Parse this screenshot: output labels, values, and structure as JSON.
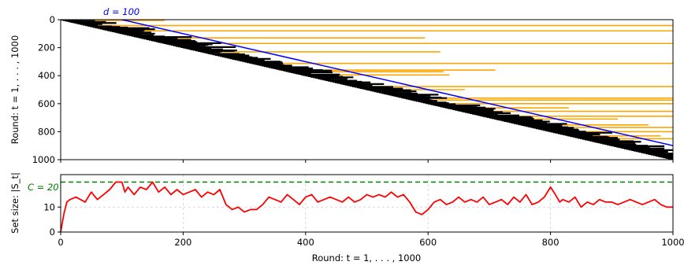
{
  "chart_data": [
    {
      "type": "interval",
      "ylabel": "Round: t = 1, . . . , 1000",
      "xlim": [
        0,
        1000
      ],
      "ylim": [
        0,
        1000
      ],
      "y_inverted": true,
      "xticks": [
        "0",
        "200",
        "400",
        "600",
        "800",
        "1000"
      ],
      "yticks": [
        "0",
        "200",
        "400",
        "600",
        "800",
        "1000"
      ],
      "annotation": "d = 100",
      "colors": {
        "line": "#0000ff",
        "short": "#000000",
        "long": "#ffa500"
      },
      "diagonal_line": {
        "x": [
          0,
          1000
        ],
        "y": [
          -100,
          900
        ]
      },
      "long_intervals": [
        {
          "round": 5,
          "end": 170
        },
        {
          "round": 42,
          "end": 1000
        },
        {
          "round": 80,
          "end": 1000
        },
        {
          "round": 130,
          "end": 595
        },
        {
          "round": 170,
          "end": 1000
        },
        {
          "round": 230,
          "end": 620
        },
        {
          "round": 312,
          "end": 1000
        },
        {
          "round": 360,
          "end": 710
        },
        {
          "round": 372,
          "end": 625
        },
        {
          "round": 395,
          "end": 635
        },
        {
          "round": 478,
          "end": 1000
        },
        {
          "round": 500,
          "end": 660
        },
        {
          "round": 560,
          "end": 1000
        },
        {
          "round": 575,
          "end": 1000
        },
        {
          "round": 600,
          "end": 1000
        },
        {
          "round": 630,
          "end": 830
        },
        {
          "round": 655,
          "end": 1000
        },
        {
          "round": 690,
          "end": 1000
        },
        {
          "round": 710,
          "end": 910
        },
        {
          "round": 752,
          "end": 960
        },
        {
          "round": 770,
          "end": 1000
        },
        {
          "round": 800,
          "end": 1000
        },
        {
          "round": 830,
          "end": 980
        },
        {
          "round": 850,
          "end": 1000
        }
      ]
    },
    {
      "type": "line",
      "xlabel": "Round: t = 1, . . . , 1000",
      "ylabel": "Set size: |S_t|",
      "xlim": [
        0,
        1000
      ],
      "ylim": [
        0,
        23
      ],
      "grid": true,
      "xticks": [
        "0",
        "200",
        "400",
        "600",
        "800",
        "1000"
      ],
      "yticks": [
        "0",
        "10"
      ],
      "threshold": {
        "label": "C = 20",
        "value": 20,
        "color": "#008000"
      },
      "series": [
        {
          "color": "#ff0000",
          "x": [
            0,
            5,
            10,
            15,
            25,
            40,
            50,
            60,
            70,
            80,
            90,
            100,
            105,
            110,
            120,
            130,
            140,
            150,
            160,
            170,
            180,
            190,
            200,
            210,
            220,
            230,
            240,
            250,
            260,
            270,
            280,
            290,
            300,
            310,
            320,
            330,
            340,
            350,
            360,
            370,
            380,
            390,
            400,
            410,
            420,
            430,
            440,
            450,
            460,
            470,
            480,
            490,
            500,
            510,
            520,
            530,
            540,
            550,
            560,
            570,
            580,
            590,
            600,
            610,
            620,
            630,
            640,
            650,
            660,
            670,
            680,
            690,
            700,
            710,
            720,
            730,
            740,
            750,
            760,
            770,
            780,
            790,
            800,
            808,
            815,
            820,
            830,
            840,
            850,
            860,
            870,
            880,
            890,
            900,
            910,
            920,
            930,
            940,
            950,
            960,
            970,
            980,
            990,
            1000
          ],
          "y": [
            0,
            7,
            12,
            13,
            14,
            12,
            16,
            13,
            15,
            17,
            20,
            20,
            16,
            18,
            15,
            18,
            17,
            20,
            16,
            18,
            15,
            17,
            15,
            16,
            17,
            14,
            16,
            15,
            17,
            11,
            9,
            10,
            8,
            9,
            9,
            11,
            14,
            13,
            12,
            15,
            13,
            11,
            14,
            15,
            12,
            13,
            14,
            13,
            12,
            14,
            12,
            13,
            15,
            14,
            15,
            14,
            16,
            14,
            15,
            12,
            8,
            7,
            9,
            12,
            13,
            11,
            12,
            14,
            12,
            13,
            12,
            14,
            11,
            12,
            13,
            11,
            14,
            12,
            15,
            11,
            12,
            14,
            18,
            15,
            12,
            13,
            12,
            14,
            10,
            12,
            11,
            13,
            12,
            12,
            11,
            12,
            13,
            12,
            11,
            12,
            13,
            11,
            10,
            10
          ]
        }
      ]
    }
  ]
}
